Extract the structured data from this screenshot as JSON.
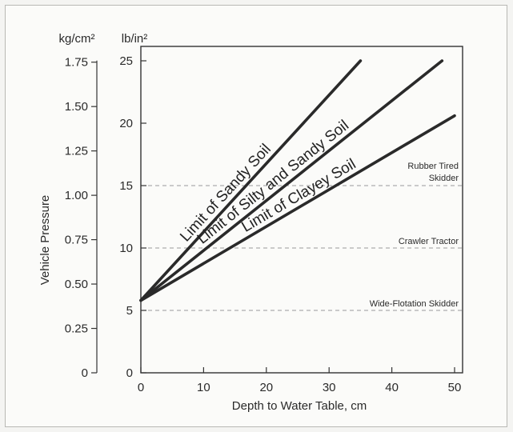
{
  "chart_data": {
    "type": "line",
    "xlabel": "Depth to Water Table, cm",
    "ylabel": "Vehicle Pressure",
    "primary_unit": "lb/in²",
    "secondary_unit": "kg/cm²",
    "xlim": [
      0,
      50
    ],
    "ylim": [
      0,
      26
    ],
    "x_ticks": [
      0,
      10,
      20,
      30,
      40,
      50
    ],
    "y_ticks": [
      0,
      5,
      10,
      15,
      20,
      25
    ],
    "secondary_ticks": [
      {
        "value": 0,
        "label": "0"
      },
      {
        "value": 0.25,
        "label": "0.25"
      },
      {
        "value": 0.5,
        "label": "0.50"
      },
      {
        "value": 0.75,
        "label": "0.75"
      },
      {
        "value": 1.0,
        "label": "1.00"
      },
      {
        "value": 1.25,
        "label": "1.25"
      },
      {
        "value": 1.5,
        "label": "1.50"
      },
      {
        "value": 1.75,
        "label": "1.75"
      }
    ],
    "kg_per_cm2_to_lb_per_in2": 14.2233,
    "series": [
      {
        "name": "Limit of Sandy Soil",
        "x": [
          0,
          35
        ],
        "y": [
          5.8,
          25.0
        ]
      },
      {
        "name": "Limit of Silty and Sandy Soil",
        "x": [
          0,
          48
        ],
        "y": [
          5.8,
          25.0
        ]
      },
      {
        "name": "Limit of Clayey Soil",
        "x": [
          0,
          50
        ],
        "y": [
          5.8,
          20.6
        ]
      }
    ],
    "reference_lines": [
      {
        "y": 15,
        "label_lines": [
          "Rubber Tired",
          "Skidder"
        ]
      },
      {
        "y": 10,
        "label_lines": [
          "Crawler Tractor"
        ]
      },
      {
        "y": 5,
        "label_lines": [
          "Wide-Flotation Skidder"
        ]
      }
    ],
    "grid": false
  }
}
